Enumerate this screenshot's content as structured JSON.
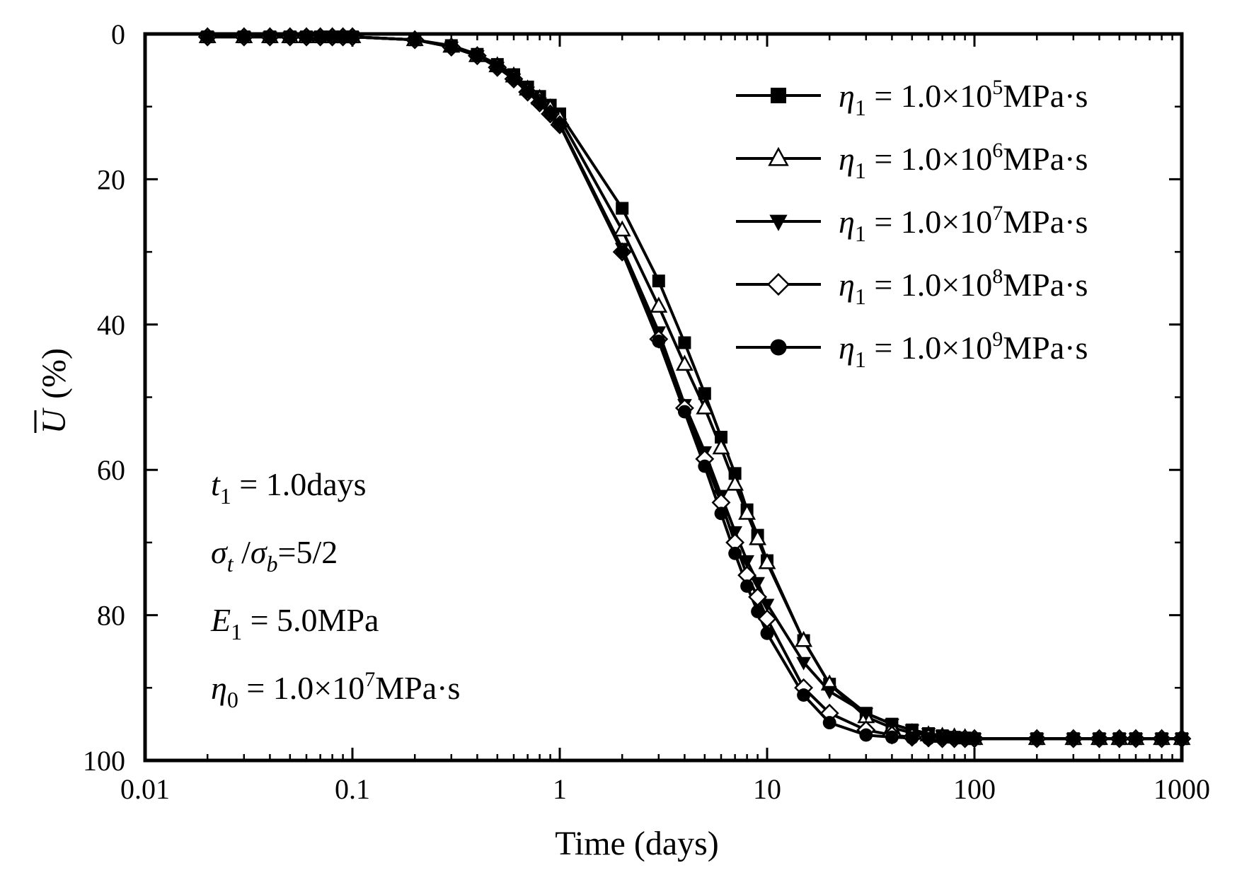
{
  "chart_data": {
    "type": "line",
    "title": "",
    "xlabel": "Time (days)",
    "ylabel": "(%)",
    "ylabel_symbol": "U",
    "x_scale": "log",
    "xlim": [
      0.01,
      1000
    ],
    "ylim": [
      0,
      100
    ],
    "y_inverted": true,
    "grid": false,
    "legend_position": "top-right",
    "x_ticks": [
      0.01,
      0.1,
      1,
      10,
      100,
      1000
    ],
    "x_tick_labels": [
      "0.01",
      "0.1",
      "1",
      "10",
      "100",
      "1000"
    ],
    "y_ticks": [
      0,
      20,
      40,
      60,
      80,
      100
    ],
    "y_tick_labels": [
      "0",
      "20",
      "40",
      "60",
      "80",
      "100"
    ],
    "series": [
      {
        "name": "η1 = 1.0×10^5 MPa·s",
        "legend": {
          "symbol": "η",
          "sub": "1",
          "pre": " = 1.0×10",
          "sup": "5",
          "post": "MPa·s"
        },
        "marker": "square-filled",
        "x": [
          0.02,
          0.03,
          0.04,
          0.05,
          0.06,
          0.07,
          0.08,
          0.09,
          0.1,
          0.2,
          0.3,
          0.4,
          0.5,
          0.6,
          0.7,
          0.8,
          0.9,
          1,
          2,
          3,
          4,
          5,
          6,
          7,
          8,
          9,
          10,
          15,
          20,
          30,
          40,
          50,
          60,
          70,
          80,
          90,
          100,
          200,
          300,
          400,
          500,
          600,
          800,
          1000
        ],
        "y": [
          0.4,
          0.4,
          0.4,
          0.4,
          0.4,
          0.4,
          0.4,
          0.4,
          0.4,
          0.8,
          1.6,
          2.8,
          4.2,
          5.6,
          7.3,
          8.6,
          9.8,
          11,
          24,
          34,
          42.5,
          49.5,
          55.5,
          60.5,
          65.5,
          69,
          72.5,
          83.5,
          89.5,
          93.5,
          95,
          95.8,
          96.3,
          96.6,
          96.8,
          96.9,
          97,
          97,
          97,
          97,
          97,
          97,
          97,
          97
        ]
      },
      {
        "name": "η1 = 1.0×10^6 MPa·s",
        "legend": {
          "symbol": "η",
          "sub": "1",
          "pre": " = 1.0×10",
          "sup": "6",
          "post": "MPa·s"
        },
        "marker": "triangle-up-open",
        "x": [
          0.02,
          0.03,
          0.04,
          0.05,
          0.06,
          0.07,
          0.08,
          0.09,
          0.1,
          0.2,
          0.3,
          0.4,
          0.5,
          0.6,
          0.7,
          0.8,
          0.9,
          1,
          2,
          3,
          4,
          5,
          6,
          7,
          8,
          9,
          10,
          15,
          20,
          30,
          40,
          50,
          60,
          70,
          80,
          90,
          100,
          200,
          300,
          400,
          500,
          600,
          800,
          1000
        ],
        "y": [
          0.4,
          0.4,
          0.4,
          0.4,
          0.4,
          0.4,
          0.4,
          0.4,
          0.4,
          0.8,
          1.7,
          3,
          4.4,
          5.8,
          7.6,
          8.9,
          10.2,
          11.6,
          27,
          37.5,
          45.5,
          51.5,
          57,
          62,
          66,
          69.5,
          72.8,
          83.5,
          89.5,
          94,
          95.5,
          96.2,
          96.5,
          96.7,
          96.8,
          96.9,
          97,
          97,
          97,
          97,
          97,
          97,
          97,
          97
        ]
      },
      {
        "name": "η1 = 1.0×10^7 MPa·s",
        "legend": {
          "symbol": "η",
          "sub": "1",
          "pre": " = 1.0×10",
          "sup": "7",
          "post": "MPa·s"
        },
        "marker": "triangle-down-filled",
        "x": [
          0.02,
          0.03,
          0.04,
          0.05,
          0.06,
          0.07,
          0.08,
          0.09,
          0.1,
          0.2,
          0.3,
          0.4,
          0.5,
          0.6,
          0.7,
          0.8,
          0.9,
          1,
          2,
          3,
          4,
          5,
          6,
          7,
          8,
          9,
          10,
          15,
          20,
          30,
          40,
          50,
          60,
          70,
          80,
          90,
          100,
          200,
          300,
          400,
          500,
          600,
          800,
          1000
        ],
        "y": [
          0.4,
          0.4,
          0.4,
          0.4,
          0.4,
          0.4,
          0.4,
          0.4,
          0.4,
          0.8,
          1.8,
          3,
          4.6,
          6.2,
          8,
          9.5,
          11,
          12.4,
          29.5,
          41,
          51,
          57.5,
          63.5,
          68.5,
          72.5,
          75.5,
          78.5,
          86.5,
          90.5,
          93.5,
          95,
          95.8,
          96.3,
          96.6,
          96.8,
          96.9,
          97,
          97,
          97,
          97,
          97,
          97,
          97,
          97
        ]
      },
      {
        "name": "η1 = 1.0×10^8 MPa·s",
        "legend": {
          "symbol": "η",
          "sub": "1",
          "pre": " = 1.0×10",
          "sup": "8",
          "post": "MPa·s"
        },
        "marker": "diamond-open",
        "x": [
          0.02,
          0.03,
          0.04,
          0.05,
          0.06,
          0.07,
          0.08,
          0.09,
          0.1,
          0.2,
          0.3,
          0.4,
          0.5,
          0.6,
          0.7,
          0.8,
          0.9,
          1,
          2,
          3,
          4,
          5,
          6,
          7,
          8,
          9,
          10,
          15,
          20,
          30,
          40,
          50,
          60,
          70,
          80,
          90,
          100,
          200,
          300,
          400,
          500,
          600,
          800,
          1000
        ],
        "y": [
          0.4,
          0.4,
          0.4,
          0.4,
          0.4,
          0.4,
          0.4,
          0.4,
          0.4,
          0.8,
          1.8,
          3,
          4.6,
          6.2,
          8,
          9.5,
          11,
          12.5,
          30,
          42,
          51.5,
          58.5,
          64.5,
          70,
          74.5,
          77.5,
          80.5,
          90,
          93.5,
          95.8,
          96.5,
          96.8,
          96.9,
          97,
          97,
          97,
          97,
          97,
          97,
          97,
          97,
          97,
          97,
          97
        ]
      },
      {
        "name": "η1 = 1.0×10^9 MPa·s",
        "legend": {
          "symbol": "η",
          "sub": "1",
          "pre": " = 1.0×10",
          "sup": "9",
          "post": "MPa·s"
        },
        "marker": "circle-filled",
        "x": [
          0.02,
          0.03,
          0.04,
          0.05,
          0.06,
          0.07,
          0.08,
          0.09,
          0.1,
          0.2,
          0.3,
          0.4,
          0.5,
          0.6,
          0.7,
          0.8,
          0.9,
          1,
          2,
          3,
          4,
          5,
          6,
          7,
          8,
          9,
          10,
          15,
          20,
          30,
          40,
          50,
          60,
          70,
          80,
          90,
          100,
          200,
          300,
          400,
          500,
          600,
          800,
          1000
        ],
        "y": [
          0.4,
          0.4,
          0.4,
          0.4,
          0.4,
          0.4,
          0.4,
          0.4,
          0.4,
          0.8,
          1.8,
          3,
          4.6,
          6.2,
          8,
          9.5,
          11,
          12.5,
          30,
          42.3,
          52,
          59.5,
          66,
          71.5,
          76,
          79.5,
          82.5,
          91,
          94.8,
          96.5,
          96.8,
          96.9,
          97,
          97,
          97,
          97,
          97,
          97,
          97,
          97,
          97,
          97,
          97,
          97
        ]
      }
    ],
    "annotations": [
      {
        "parts": [
          {
            "t": "t",
            "i": true
          },
          {
            "t": "1",
            "sub": true
          },
          {
            "t": " = 1.0days"
          }
        ]
      },
      {
        "parts": [
          {
            "t": "σ",
            "i": true
          },
          {
            "t": "t",
            "sub": true,
            "i": true
          },
          {
            "t": " /"
          },
          {
            "t": "σ",
            "i": true
          },
          {
            "t": "b",
            "sub": true,
            "i": true
          },
          {
            "t": "=5/2"
          }
        ]
      },
      {
        "parts": [
          {
            "t": "E",
            "i": true
          },
          {
            "t": "1",
            "sub": true
          },
          {
            "t": " = 5.0MPa"
          }
        ]
      },
      {
        "parts": [
          {
            "t": "η",
            "i": true
          },
          {
            "t": "0",
            "sub": true
          },
          {
            "t": " = 1.0×10"
          },
          {
            "t": "7",
            "sup": true
          },
          {
            "t": "MPa·s"
          }
        ]
      }
    ]
  },
  "colors": {
    "line": "#000000",
    "background": "#ffffff"
  }
}
